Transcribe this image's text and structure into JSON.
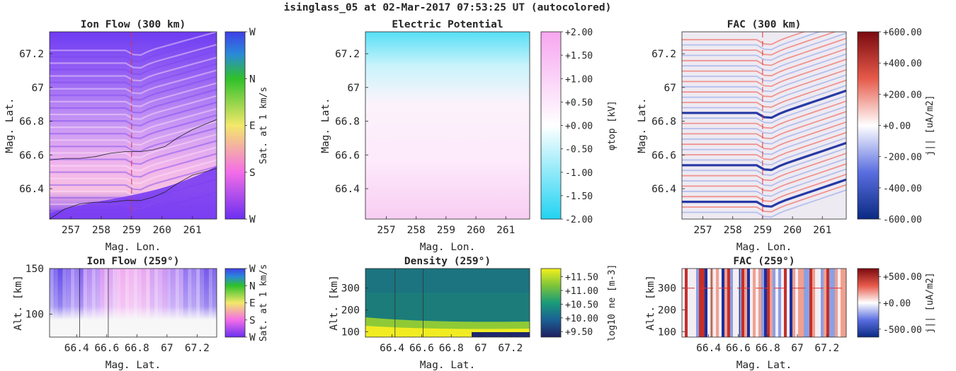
{
  "figure_title": "isinglass_05 at 02-Mar-2017 07:53:25 UT (autocolored)",
  "colors": {
    "dirW": "#6a2ff0",
    "dirN": "#2fc02a",
    "dirE": "#f3e86a",
    "dirS": "#f46de8",
    "potNeg": "#22d3f2",
    "potPos": "#f7a6f0",
    "facNeg": "#0a2a82",
    "facPos": "#7a0a0f",
    "densLow": "#20205f",
    "densMid": "#1a9a7a",
    "densHigh": "#f4f01c"
  },
  "chart_data": [
    {
      "type": "heatmap",
      "title": "Ion Flow (300 km)",
      "xlabel": "Mag. Lon.",
      "ylabel": "Mag. Lat.",
      "xlim": [
        256.3,
        261.8
      ],
      "ylim": [
        66.22,
        67.33
      ],
      "xticks": [
        "257",
        "258",
        "259",
        "260",
        "261"
      ],
      "yticks": [
        "66.4",
        "66.6",
        "66.8",
        "67",
        "67.2"
      ],
      "colorbar": {
        "label": "Sat. at 1 km/s",
        "ticks": [
          "W",
          "S",
          "E",
          "N",
          "W"
        ]
      },
      "cut_longitude": 259,
      "boundaries": [
        {
          "x": [
            256.3,
            256.8,
            257.3,
            257.8,
            258.3,
            258.8,
            259.3,
            259.7,
            260.1,
            260.5,
            261.0,
            261.4,
            261.8
          ],
          "y": [
            66.57,
            66.58,
            66.58,
            66.59,
            66.61,
            66.62,
            66.62,
            66.63,
            66.65,
            66.7,
            66.75,
            66.78,
            66.81
          ]
        },
        {
          "x": [
            256.3,
            256.8,
            257.3,
            257.8,
            258.3,
            258.8,
            259.3,
            259.7,
            260.1,
            260.5,
            261.0,
            261.4,
            261.8
          ],
          "y": [
            66.22,
            66.28,
            66.31,
            66.32,
            66.32,
            66.33,
            66.33,
            66.35,
            66.38,
            66.43,
            66.48,
            66.5,
            66.52
          ]
        }
      ]
    },
    {
      "type": "heatmap",
      "title": "Electric Potential",
      "xlabel": "Mag. Lon.",
      "ylabel": "Mag. Lat.",
      "xlim": [
        256.3,
        261.8
      ],
      "ylim": [
        66.22,
        67.33
      ],
      "xticks": [
        "257",
        "258",
        "259",
        "260",
        "261"
      ],
      "yticks": [
        "66.4",
        "66.6",
        "66.8",
        "67",
        "67.2"
      ],
      "colorbar": {
        "label": "φtop [kV]",
        "ticks": [
          "-2.00",
          "-1.50",
          "-1.00",
          "-0.50",
          "+0.00",
          "+0.50",
          "+1.00",
          "+1.50",
          "+2.00"
        ],
        "range": [
          -2,
          2
        ]
      }
    },
    {
      "type": "heatmap",
      "title": "FAC (300 km)",
      "xlabel": "Mag. Lon.",
      "ylabel": "Mag. Lat.",
      "xlim": [
        256.3,
        261.8
      ],
      "ylim": [
        66.22,
        67.33
      ],
      "xticks": [
        "257",
        "258",
        "259",
        "260",
        "261"
      ],
      "yticks": [
        "66.4",
        "66.6",
        "66.8",
        "67",
        "67.2"
      ],
      "colorbar": {
        "label": "j|| [uA/m2]",
        "ticks": [
          "-600.00",
          "-400.00",
          "-200.00",
          "+0.00",
          "+200.00",
          "+400.00",
          "+600.00"
        ],
        "range": [
          -600,
          600
        ]
      },
      "cut_longitude": 259
    },
    {
      "type": "heatmap",
      "title": "Ion Flow (259°)",
      "xlabel": "Mag. Lat.",
      "ylabel": "Alt. [km]",
      "xlim": [
        66.22,
        67.33
      ],
      "ylim": [
        75,
        150
      ],
      "xticks": [
        "66.4",
        "66.6",
        "66.8",
        "67",
        "67.2"
      ],
      "yticks": [
        "100",
        "150"
      ],
      "colorbar": {
        "label": "Sat. at 1 km/s",
        "ticks": [
          "W",
          "S",
          "E",
          "N",
          "W"
        ]
      }
    },
    {
      "type": "heatmap",
      "title": "Density (259°)",
      "xlabel": "Mag. Lat.",
      "ylabel": "Alt. [km]",
      "xlim": [
        66.22,
        67.33
      ],
      "ylim": [
        75,
        390
      ],
      "xticks": [
        "66.4",
        "66.6",
        "66.8",
        "67",
        "67.2"
      ],
      "yticks": [
        "100",
        "200",
        "300"
      ],
      "colorbar": {
        "label": "log10 ne [m-3]",
        "ticks": [
          "+9.50",
          "+10.00",
          "+10.50",
          "+11.00",
          "+11.50"
        ],
        "range": [
          9.3,
          11.8
        ]
      }
    },
    {
      "type": "heatmap",
      "title": "FAC (259°)",
      "xlabel": "Mag. Lat.",
      "ylabel": "Alt. [km]",
      "xlim": [
        66.22,
        67.33
      ],
      "ylim": [
        75,
        390
      ],
      "xticks": [
        "66.4",
        "66.6",
        "66.8",
        "67",
        "67.2"
      ],
      "yticks": [
        "100",
        "200",
        "300"
      ],
      "colorbar": {
        "label": "j|| [uA/m2]",
        "ticks": [
          "-500.00",
          "+0.00",
          "+500.00"
        ],
        "range": [
          -650,
          650
        ]
      },
      "cut_altitude": 300
    }
  ]
}
